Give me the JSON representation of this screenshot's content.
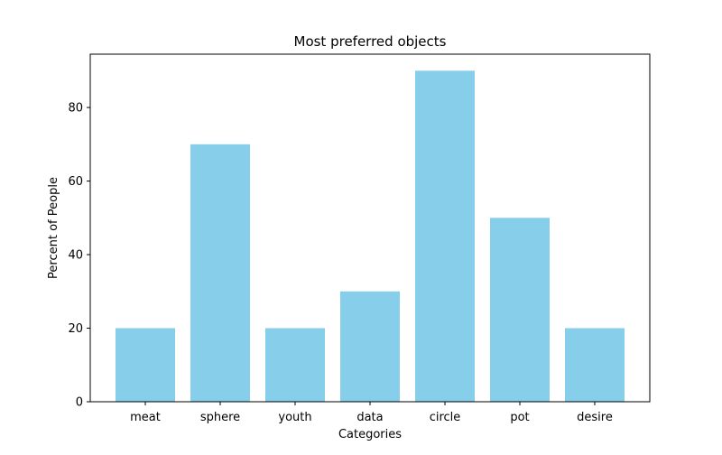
{
  "chart_data": {
    "type": "bar",
    "title": "Most preferred objects",
    "xlabel": "Categories",
    "ylabel": "Percent of People",
    "categories": [
      "meat",
      "sphere",
      "youth",
      "data",
      "circle",
      "pot",
      "desire"
    ],
    "values": [
      20,
      70,
      20,
      30,
      90,
      50,
      20
    ],
    "ylim": [
      0,
      94.5
    ],
    "yticks": [
      0,
      20,
      40,
      60,
      80
    ],
    "bar_color": "#87CEEB",
    "grid": false,
    "legend": "none"
  }
}
